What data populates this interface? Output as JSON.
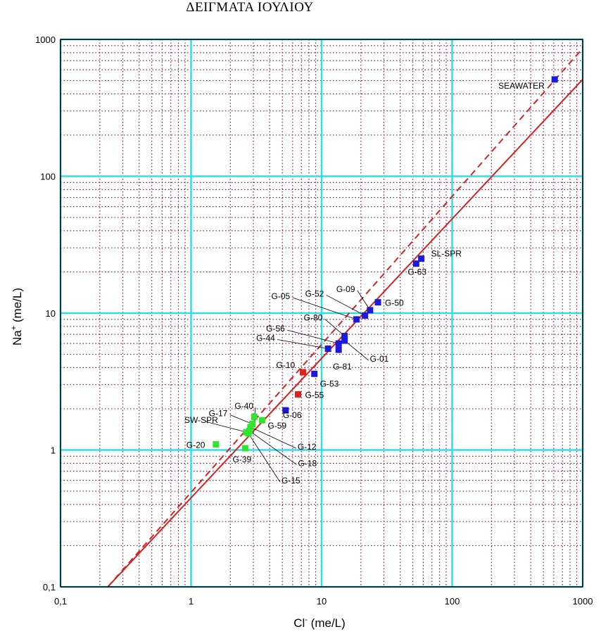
{
  "title": "ΔΕΙΓΜΑΤΑ ΙΟΥΛΙΟΥ",
  "chart_data": {
    "type": "scatter",
    "title": "ΔΕΙΓΜΑΤΑ ΙΟΥΛΙΟΥ",
    "xlabel": {
      "base": "Cl",
      "sup": "-",
      "unit": " (me/L)"
    },
    "ylabel": {
      "base": "Na",
      "sup": "+",
      "unit": " (me/L)"
    },
    "xscale": "log",
    "yscale": "log",
    "xlim": [
      0.1,
      1000
    ],
    "ylim": [
      0.1,
      1000
    ],
    "xticks": [
      0.1,
      1,
      10,
      100,
      1000
    ],
    "xtick_labels": [
      "0,1",
      "1",
      "10",
      "100",
      "1000"
    ],
    "yticks": [
      0.1,
      1,
      10,
      100,
      1000
    ],
    "ytick_labels": [
      "0,1",
      "1",
      "10",
      "100",
      "1000"
    ],
    "grid": true,
    "colors": {
      "major_grid": "#33dde6",
      "minor_grid": "#7a1f4f",
      "blue": "#1a1adb",
      "green": "#2ee62e",
      "red": "#e02020",
      "line": "#d42020"
    },
    "reference_lines": [
      {
        "style": "solid",
        "x": [
          0.23,
          1000
        ],
        "y": [
          0.1,
          510
        ]
      },
      {
        "style": "dashed",
        "x": [
          0.23,
          1000
        ],
        "y": [
          0.1,
          860
        ]
      }
    ],
    "points": [
      {
        "label": "SEAWATER",
        "x": 610,
        "y": 510,
        "color": "blue"
      },
      {
        "label": "SL-SPR",
        "x": 58,
        "y": 25,
        "color": "blue"
      },
      {
        "label": "G-63",
        "x": 53,
        "y": 23,
        "color": "blue"
      },
      {
        "label": "G-50",
        "x": 27,
        "y": 12,
        "color": "blue"
      },
      {
        "label": "G-09",
        "x": 23.5,
        "y": 10.5,
        "color": "blue"
      },
      {
        "label": "G-52",
        "x": 21.5,
        "y": 9.6,
        "color": "blue"
      },
      {
        "label": "G-05",
        "x": 18.5,
        "y": 9,
        "color": "blue"
      },
      {
        "label": "G-80",
        "x": 15,
        "y": 6.8,
        "color": "blue"
      },
      {
        "label": "G-01",
        "x": 15,
        "y": 6.3,
        "color": "blue"
      },
      {
        "label": "G-56",
        "x": 13.5,
        "y": 6.0,
        "color": "blue"
      },
      {
        "label": "G-81",
        "x": 13.5,
        "y": 5.4,
        "color": "blue"
      },
      {
        "label": "G-44",
        "x": 11.2,
        "y": 5.5,
        "color": "blue"
      },
      {
        "label": "G-53",
        "x": 8.8,
        "y": 3.6,
        "color": "blue"
      },
      {
        "label": "G-10",
        "x": 7.2,
        "y": 3.7,
        "color": "red"
      },
      {
        "label": "G-55",
        "x": 6.6,
        "y": 2.55,
        "color": "red"
      },
      {
        "label": "G-06",
        "x": 5.3,
        "y": 1.95,
        "color": "blue"
      },
      {
        "label": "G-40",
        "x": 3.05,
        "y": 1.75,
        "color": "green"
      },
      {
        "label": "G-59",
        "x": 3.5,
        "y": 1.65,
        "color": "green"
      },
      {
        "label": "G-17",
        "x": 2.95,
        "y": 1.55,
        "color": "green"
      },
      {
        "label": "G-12",
        "x": 2.85,
        "y": 1.47,
        "color": "green"
      },
      {
        "label": "SW-SPR",
        "x": 2.65,
        "y": 1.35,
        "color": "green"
      },
      {
        "label": "G-18",
        "x": 2.8,
        "y": 1.38,
        "color": "green"
      },
      {
        "label": "G-15",
        "x": 2.75,
        "y": 1.32,
        "color": "green"
      },
      {
        "label": "G-20",
        "x": 1.55,
        "y": 1.1,
        "color": "green"
      },
      {
        "label": "G-39",
        "x": 2.6,
        "y": 1.03,
        "color": "green"
      }
    ]
  }
}
